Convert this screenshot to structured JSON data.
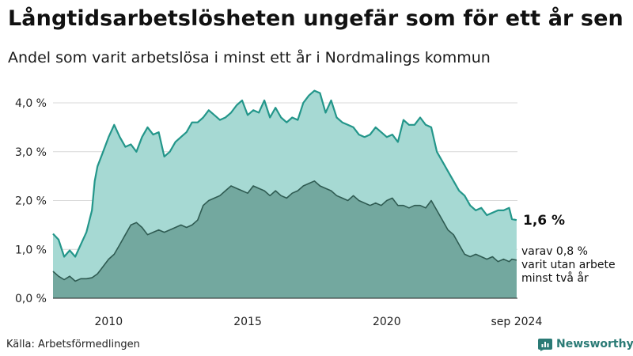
{
  "header": {
    "title": "Långtidsarbetslösheten ungefär som för ett år sen",
    "subtitle": "Andel som varit arbetslösa i minst ett år i Nordmalings kommun"
  },
  "footer": {
    "source": "Källa: Arbetsförmedlingen",
    "brand": "Newsworthy"
  },
  "colors": {
    "total_line": "#23968a",
    "total_fill": "#a6d9d3",
    "long_line": "#2f5b52",
    "long_fill": "#73a89f",
    "grid": "#d9d9d9",
    "brand": "#2a7a75"
  },
  "chart_data": {
    "type": "area",
    "title": "Långtidsarbetslösheten ungefär som för ett år sen",
    "subtitle": "Andel som varit arbetslösa i minst ett år i Nordmalings kommun",
    "ylim": [
      0,
      4.0
    ],
    "xlim": [
      2008.0,
      2024.7
    ],
    "y_ticks": [
      0,
      1,
      2,
      3,
      4
    ],
    "y_tick_labels": [
      "0,0 %",
      "1,0 %",
      "2,0 %",
      "3,0 %",
      "4,0 %"
    ],
    "x_ticks": [
      2010,
      2015,
      2020,
      2024.67
    ],
    "x_tick_labels": [
      "2010",
      "2015",
      "2020",
      "sep 2024"
    ],
    "grid": "horizontal",
    "annotations": {
      "total_value_label": "1,6 %",
      "long_label_lines": [
        "varav 0,8 %",
        "varit utan arbete",
        "minst två år"
      ]
    },
    "series": [
      {
        "key": "total",
        "points": [
          [
            2008.0,
            1.32
          ],
          [
            2008.2,
            1.2
          ],
          [
            2008.4,
            0.85
          ],
          [
            2008.6,
            0.98
          ],
          [
            2008.8,
            0.85
          ],
          [
            2009.0,
            1.1
          ],
          [
            2009.2,
            1.35
          ],
          [
            2009.4,
            1.8
          ],
          [
            2009.5,
            2.4
          ],
          [
            2009.6,
            2.7
          ],
          [
            2009.8,
            3.0
          ],
          [
            2010.0,
            3.3
          ],
          [
            2010.2,
            3.55
          ],
          [
            2010.4,
            3.3
          ],
          [
            2010.6,
            3.1
          ],
          [
            2010.8,
            3.15
          ],
          [
            2011.0,
            3.0
          ],
          [
            2011.2,
            3.3
          ],
          [
            2011.4,
            3.5
          ],
          [
            2011.6,
            3.35
          ],
          [
            2011.8,
            3.4
          ],
          [
            2012.0,
            2.9
          ],
          [
            2012.2,
            3.0
          ],
          [
            2012.4,
            3.2
          ],
          [
            2012.6,
            3.3
          ],
          [
            2012.8,
            3.4
          ],
          [
            2013.0,
            3.6
          ],
          [
            2013.2,
            3.6
          ],
          [
            2013.4,
            3.7
          ],
          [
            2013.6,
            3.85
          ],
          [
            2013.8,
            3.75
          ],
          [
            2014.0,
            3.65
          ],
          [
            2014.2,
            3.7
          ],
          [
            2014.4,
            3.8
          ],
          [
            2014.6,
            3.95
          ],
          [
            2014.8,
            4.05
          ],
          [
            2015.0,
            3.75
          ],
          [
            2015.2,
            3.85
          ],
          [
            2015.4,
            3.8
          ],
          [
            2015.6,
            4.05
          ],
          [
            2015.8,
            3.7
          ],
          [
            2016.0,
            3.9
          ],
          [
            2016.2,
            3.7
          ],
          [
            2016.4,
            3.6
          ],
          [
            2016.6,
            3.7
          ],
          [
            2016.8,
            3.65
          ],
          [
            2017.0,
            4.0
          ],
          [
            2017.2,
            4.15
          ],
          [
            2017.4,
            4.25
          ],
          [
            2017.6,
            4.2
          ],
          [
            2017.8,
            3.8
          ],
          [
            2018.0,
            4.05
          ],
          [
            2018.2,
            3.7
          ],
          [
            2018.4,
            3.6
          ],
          [
            2018.6,
            3.55
          ],
          [
            2018.8,
            3.5
          ],
          [
            2019.0,
            3.35
          ],
          [
            2019.2,
            3.3
          ],
          [
            2019.4,
            3.35
          ],
          [
            2019.6,
            3.5
          ],
          [
            2019.8,
            3.4
          ],
          [
            2020.0,
            3.3
          ],
          [
            2020.2,
            3.35
          ],
          [
            2020.4,
            3.2
          ],
          [
            2020.6,
            3.65
          ],
          [
            2020.8,
            3.55
          ],
          [
            2021.0,
            3.55
          ],
          [
            2021.2,
            3.7
          ],
          [
            2021.4,
            3.55
          ],
          [
            2021.6,
            3.5
          ],
          [
            2021.8,
            3.0
          ],
          [
            2022.0,
            2.8
          ],
          [
            2022.2,
            2.6
          ],
          [
            2022.4,
            2.4
          ],
          [
            2022.6,
            2.2
          ],
          [
            2022.8,
            2.1
          ],
          [
            2023.0,
            1.9
          ],
          [
            2023.2,
            1.8
          ],
          [
            2023.4,
            1.85
          ],
          [
            2023.6,
            1.7
          ],
          [
            2023.8,
            1.75
          ],
          [
            2024.0,
            1.8
          ],
          [
            2024.2,
            1.8
          ],
          [
            2024.4,
            1.85
          ],
          [
            2024.5,
            1.62
          ],
          [
            2024.67,
            1.6
          ]
        ]
      },
      {
        "key": "long",
        "points": [
          [
            2008.0,
            0.55
          ],
          [
            2008.2,
            0.45
          ],
          [
            2008.4,
            0.38
          ],
          [
            2008.6,
            0.45
          ],
          [
            2008.8,
            0.35
          ],
          [
            2009.0,
            0.4
          ],
          [
            2009.2,
            0.4
          ],
          [
            2009.4,
            0.42
          ],
          [
            2009.6,
            0.5
          ],
          [
            2009.8,
            0.65
          ],
          [
            2010.0,
            0.8
          ],
          [
            2010.2,
            0.9
          ],
          [
            2010.4,
            1.1
          ],
          [
            2010.6,
            1.3
          ],
          [
            2010.8,
            1.5
          ],
          [
            2011.0,
            1.55
          ],
          [
            2011.2,
            1.45
          ],
          [
            2011.4,
            1.3
          ],
          [
            2011.6,
            1.35
          ],
          [
            2011.8,
            1.4
          ],
          [
            2012.0,
            1.35
          ],
          [
            2012.2,
            1.4
          ],
          [
            2012.4,
            1.45
          ],
          [
            2012.6,
            1.5
          ],
          [
            2012.8,
            1.45
          ],
          [
            2013.0,
            1.5
          ],
          [
            2013.2,
            1.6
          ],
          [
            2013.4,
            1.9
          ],
          [
            2013.6,
            2.0
          ],
          [
            2013.8,
            2.05
          ],
          [
            2014.0,
            2.1
          ],
          [
            2014.2,
            2.2
          ],
          [
            2014.4,
            2.3
          ],
          [
            2014.6,
            2.25
          ],
          [
            2014.8,
            2.2
          ],
          [
            2015.0,
            2.15
          ],
          [
            2015.2,
            2.3
          ],
          [
            2015.4,
            2.25
          ],
          [
            2015.6,
            2.2
          ],
          [
            2015.8,
            2.1
          ],
          [
            2016.0,
            2.2
          ],
          [
            2016.2,
            2.1
          ],
          [
            2016.4,
            2.05
          ],
          [
            2016.6,
            2.15
          ],
          [
            2016.8,
            2.2
          ],
          [
            2017.0,
            2.3
          ],
          [
            2017.2,
            2.35
          ],
          [
            2017.4,
            2.4
          ],
          [
            2017.6,
            2.3
          ],
          [
            2017.8,
            2.25
          ],
          [
            2018.0,
            2.2
          ],
          [
            2018.2,
            2.1
          ],
          [
            2018.4,
            2.05
          ],
          [
            2018.6,
            2.0
          ],
          [
            2018.8,
            2.1
          ],
          [
            2019.0,
            2.0
          ],
          [
            2019.2,
            1.95
          ],
          [
            2019.4,
            1.9
          ],
          [
            2019.6,
            1.95
          ],
          [
            2019.8,
            1.9
          ],
          [
            2020.0,
            2.0
          ],
          [
            2020.2,
            2.05
          ],
          [
            2020.4,
            1.9
          ],
          [
            2020.6,
            1.9
          ],
          [
            2020.8,
            1.85
          ],
          [
            2021.0,
            1.9
          ],
          [
            2021.2,
            1.9
          ],
          [
            2021.4,
            1.85
          ],
          [
            2021.6,
            2.0
          ],
          [
            2021.8,
            1.8
          ],
          [
            2022.0,
            1.6
          ],
          [
            2022.2,
            1.4
          ],
          [
            2022.4,
            1.3
          ],
          [
            2022.6,
            1.1
          ],
          [
            2022.8,
            0.9
          ],
          [
            2023.0,
            0.85
          ],
          [
            2023.2,
            0.9
          ],
          [
            2023.4,
            0.85
          ],
          [
            2023.6,
            0.8
          ],
          [
            2023.8,
            0.85
          ],
          [
            2024.0,
            0.75
          ],
          [
            2024.2,
            0.8
          ],
          [
            2024.4,
            0.75
          ],
          [
            2024.5,
            0.8
          ],
          [
            2024.67,
            0.78
          ]
        ]
      }
    ]
  }
}
